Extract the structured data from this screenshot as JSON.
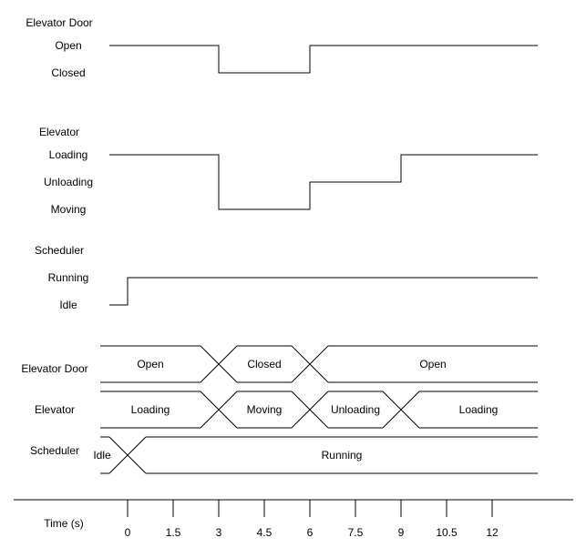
{
  "colors": {
    "line": "#000000",
    "text": "#000000",
    "background": "#ffffff"
  },
  "waveforms": [
    {
      "signal": "Elevator Door",
      "levels": [
        "Open",
        "Closed"
      ],
      "points": [
        [
          0,
          "Open"
        ],
        [
          3,
          "Closed"
        ],
        [
          6,
          "Open"
        ],
        [
          15,
          "Open"
        ]
      ]
    },
    {
      "signal": "Elevator",
      "levels": [
        "Loading",
        "Unloading",
        "Moving"
      ],
      "points": [
        [
          0,
          "Loading"
        ],
        [
          3,
          "Moving"
        ],
        [
          6,
          "Unloading"
        ],
        [
          9,
          "Loading"
        ],
        [
          15,
          "Loading"
        ]
      ]
    },
    {
      "signal": "Scheduler",
      "levels": [
        "Running",
        "Idle"
      ],
      "points": [
        [
          -0.6,
          "Idle"
        ],
        [
          0,
          "Running"
        ],
        [
          15,
          "Running"
        ]
      ]
    }
  ],
  "buses": [
    {
      "signal": "Elevator Door",
      "segments": [
        {
          "label": "Open",
          "start": -0.6,
          "end": 3
        },
        {
          "label": "Closed",
          "start": 3,
          "end": 6
        },
        {
          "label": "Open",
          "start": 6,
          "end": 15
        }
      ]
    },
    {
      "signal": "Elevator",
      "segments": [
        {
          "label": "Loading",
          "start": -0.6,
          "end": 3
        },
        {
          "label": "Moving",
          "start": 3,
          "end": 6
        },
        {
          "label": "Unloading",
          "start": 6,
          "end": 9
        },
        {
          "label": "Loading",
          "start": 9,
          "end": 15
        }
      ]
    },
    {
      "signal": "Scheduler",
      "segments": [
        {
          "label": "Idle",
          "start": -0.6,
          "end": 0
        },
        {
          "label": "Running",
          "start": 0,
          "end": 15
        }
      ]
    }
  ],
  "time_axis": {
    "label": "Time (s)",
    "ticks": [
      "0",
      "1.5",
      "3",
      "4.5",
      "6",
      "7.5",
      "9",
      "10.5",
      "12"
    ]
  }
}
